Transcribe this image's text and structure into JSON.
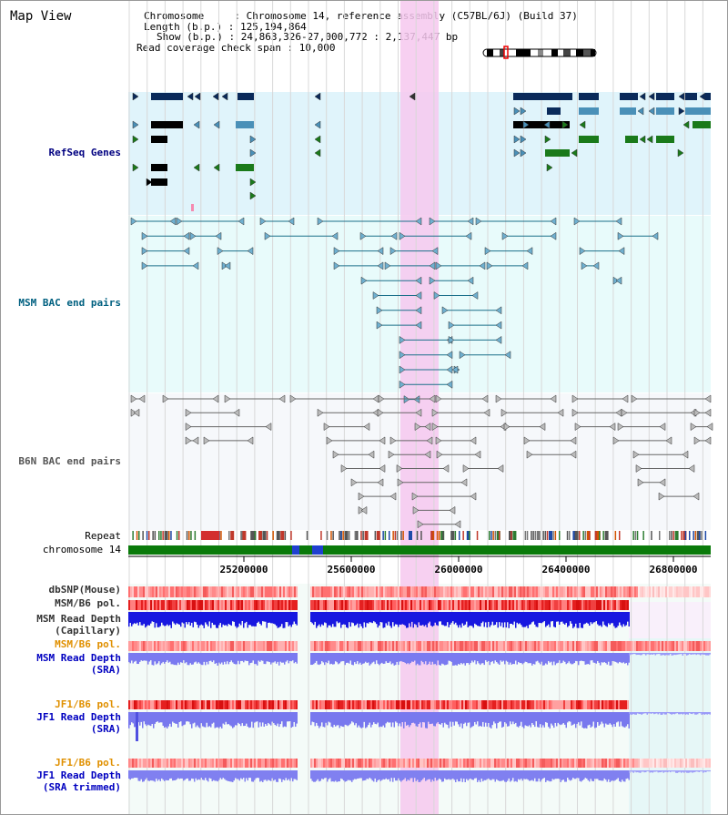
{
  "page": {
    "title": "Map View"
  },
  "info": {
    "chromosome": "Chromosome     : Chromosome 14, reference assembly (C57BL/6J) (Build 37)",
    "length": "Length (b.p.) : 125,194,864",
    "show": "Show (b.p.) : 24,863,326-27,000,772 : 2,137,447 bp",
    "span": "Read coverage check span : 10,000"
  },
  "tracks": {
    "refseq": "RefSeq Genes",
    "msm_bac": "MSM BAC end pairs",
    "b6n_bac": "B6N BAC end pairs",
    "repeat": "Repeat",
    "chromosome": "chromosome 14",
    "dbsnp": "dbSNP(Mouse)",
    "msm_b6_pol": "MSM/B6 pol.",
    "msm_depth_cap_1": "MSM Read Depth",
    "msm_depth_cap_2": "(Capillary)",
    "msm_b6_pol2": "MSM/B6 pol.",
    "msm_depth_sra_1": "MSM Read Depth",
    "msm_depth_sra_2": "(SRA)",
    "jf1_b6_pol": "JF1/B6 pol.",
    "jf1_depth_sra_1": "JF1 Read Depth",
    "jf1_depth_sra_2": "(SRA)",
    "jf1_b6_pol2": "JF1/B6 pol.",
    "jf1_depth_trim_1": "JF1 Read Depth",
    "jf1_depth_trim_2": "(SRA trimmed)"
  },
  "axis": {
    "ticks": [
      "25200000",
      "25600000",
      "26000000",
      "26400000",
      "26800000"
    ]
  },
  "colors": {
    "refseq_bg": "#e0f4fb",
    "msm_bg": "#e8fbfb",
    "b6n_bg": "#f6f8fb",
    "highlight": "#f6c8ee",
    "refseq_label": "#000080",
    "msm_label": "#006080",
    "b6n_label": "#555555",
    "orange_label": "#e09000",
    "blue_label": "#0000c0"
  }
}
